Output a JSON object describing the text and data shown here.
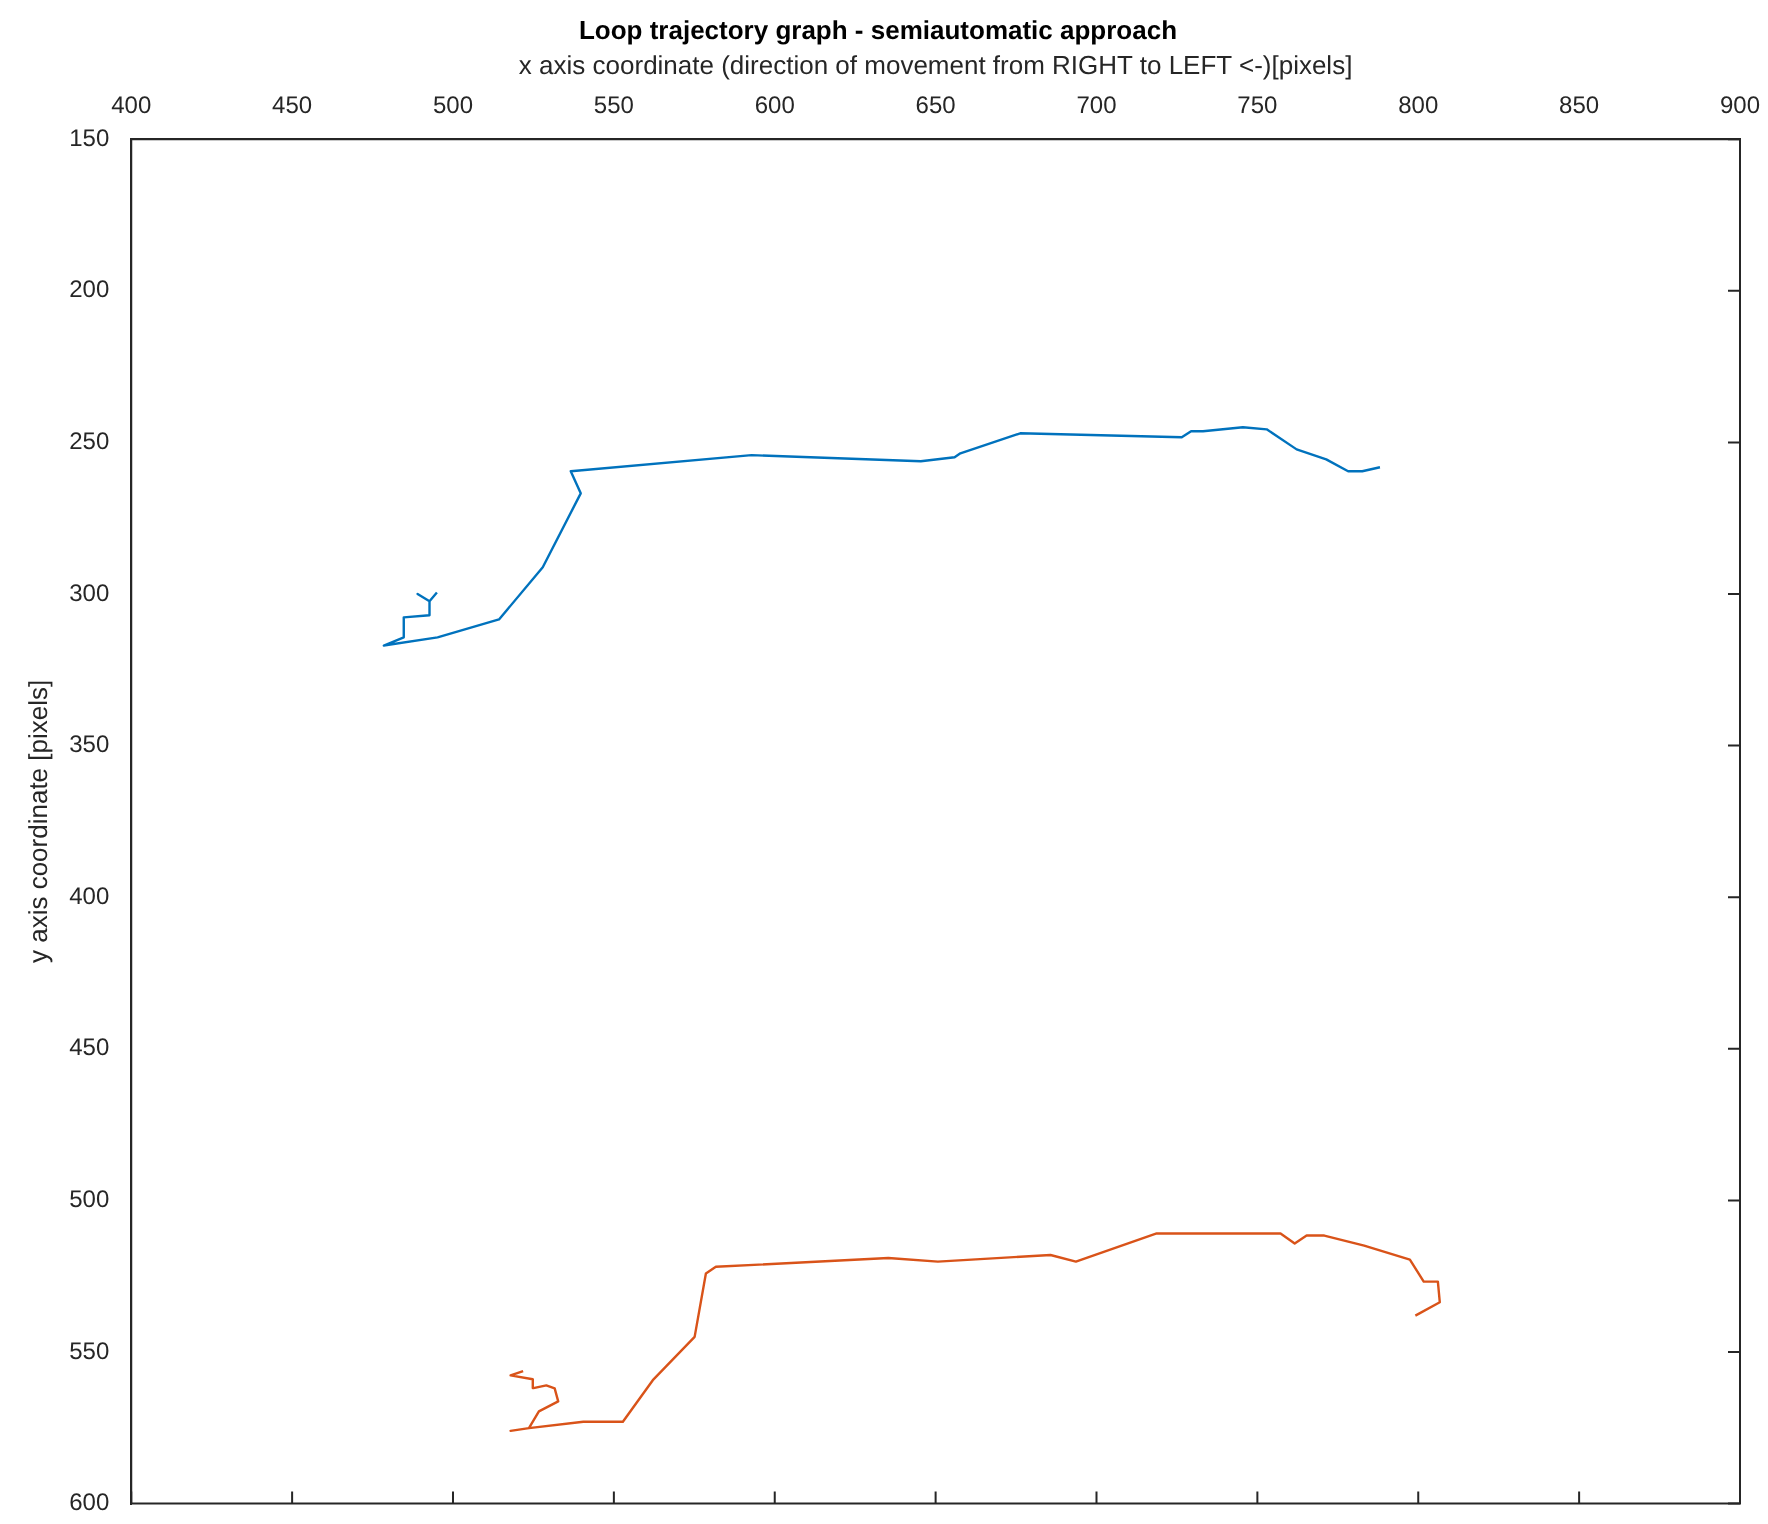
{
  "chart_data": {
    "type": "line",
    "title": "Loop trajectory graph - semiautomatic approach",
    "xlabel": "x axis coordinate (direction of movement from RIGHT to LEFT <-)[pixels]",
    "ylabel": "y axis coordinate [pixels]",
    "xlim": [
      400,
      900
    ],
    "xticks": [
      400,
      450,
      500,
      550,
      600,
      650,
      700,
      750,
      800,
      850,
      900
    ],
    "ylim": [
      600,
      150
    ],
    "yticks": [
      150,
      200,
      250,
      300,
      350,
      400,
      450,
      500,
      550,
      600
    ],
    "grid": false,
    "legend": false,
    "marker": "none",
    "line_style": "solid",
    "series": [
      {
        "color": "#0072bd",
        "x": [
          788.1,
          782.6,
          778.2,
          771.4,
          762.2,
          752.9,
          745.5,
          733.1,
          729.4,
          726.5,
          676.3,
          657.7,
          655.9,
          645.4,
          592.8,
          536.6,
          539.7,
          527.9,
          514.3,
          495.2,
          478.5,
          484.7,
          484.7,
          492.7,
          492.7,
          489,
          492.7,
          495
        ],
        "values": [
          258.2,
          259.5,
          259.5,
          255.6,
          252.3,
          245.7,
          245,
          246.3,
          246.3,
          248.3,
          247,
          253.6,
          254.9,
          256.2,
          254.2,
          259.5,
          266.8,
          291.2,
          308.4,
          314.3,
          317,
          314.3,
          307.7,
          307,
          302.4,
          300,
          302.4,
          299.5
        ]
      },
      {
        "color": "#d95319",
        "x": [
          799.1,
          806.7,
          806.1,
          801.7,
          797.4,
          783.2,
          770.8,
          765.3,
          761.6,
          757.2,
          718.7,
          693.6,
          685.7,
          650.7,
          635.3,
          581.7,
          578.6,
          575.1,
          562.1,
          552.8,
          540.5,
          523.6,
          517.9,
          523.6,
          526.7,
          532.7,
          531.6,
          529,
          525,
          524.8,
          517.9,
          521.8
        ],
        "values": [
          538,
          533.6,
          526.8,
          526.8,
          519.5,
          514.9,
          511.6,
          511.6,
          514.2,
          510.9,
          510.9,
          520.2,
          518,
          520.2,
          519,
          521.9,
          524.1,
          545,
          559.3,
          573,
          573,
          575.1,
          576,
          575.1,
          569.6,
          566.3,
          562,
          561,
          561.9,
          559,
          557.7,
          556.3
        ]
      }
    ]
  }
}
